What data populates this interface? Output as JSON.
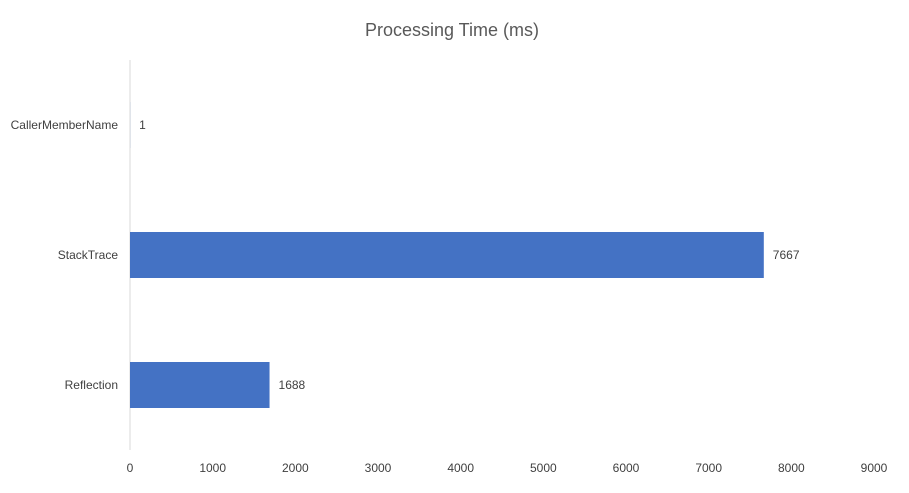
{
  "chart_data": {
    "type": "bar",
    "orientation": "horizontal",
    "title": "Processing Time (ms)",
    "xlabel": "",
    "ylabel": "",
    "categories": [
      "CallerMemberName",
      "StackTrace",
      "Reflection"
    ],
    "values": [
      1,
      7667,
      1688
    ],
    "xlim": [
      0,
      9000
    ],
    "x_ticks": [
      "0",
      "1000",
      "2000",
      "3000",
      "4000",
      "5000",
      "6000",
      "7000",
      "8000",
      "9000"
    ],
    "data_labels": [
      "1",
      "7667",
      "1688"
    ],
    "grid": false,
    "legend": "none",
    "bar_color": "#4472C4",
    "axis_color": "#D9D9D9"
  }
}
